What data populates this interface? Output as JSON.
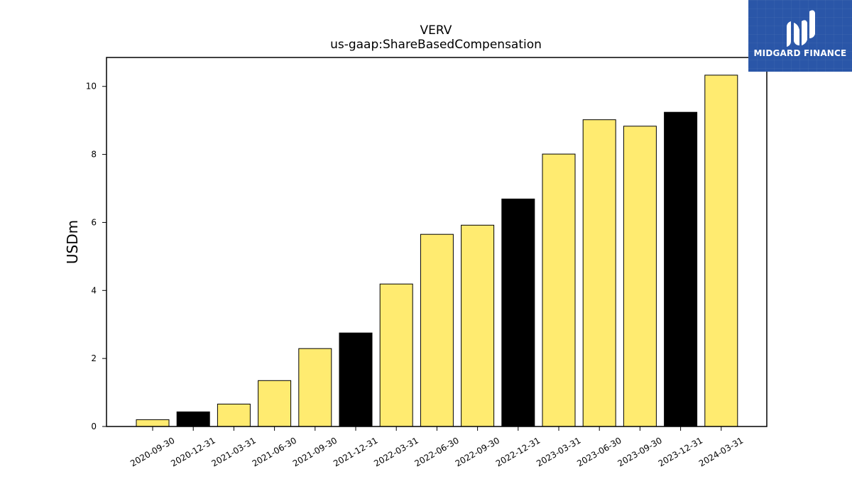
{
  "logo": {
    "text": "MIDGARD FINANCE",
    "icon": "midgard-logo-icon",
    "background_color": "#2a56a8"
  },
  "chart_data": {
    "type": "bar",
    "title": "VERV",
    "subtitle": "us-gaap:ShareBasedCompensation",
    "xlabel": "",
    "ylabel": "USDm",
    "ylim": [
      0,
      10.85
    ],
    "yticks": [
      0,
      2,
      4,
      6,
      8,
      10
    ],
    "grid": false,
    "categories": [
      "2020-09-30",
      "2020-12-31",
      "2021-03-31",
      "2021-06-30",
      "2021-09-30",
      "2021-12-31",
      "2022-03-31",
      "2022-06-30",
      "2022-09-30",
      "2022-12-31",
      "2023-03-31",
      "2023-06-30",
      "2023-09-30",
      "2023-12-31",
      "2024-03-31"
    ],
    "values": [
      0.2,
      0.43,
      0.66,
      1.35,
      2.29,
      2.75,
      4.19,
      5.65,
      5.92,
      6.69,
      8.01,
      9.02,
      8.83,
      9.24,
      10.33
    ],
    "bar_colors": [
      "#ffeb70",
      "#000000",
      "#ffeb70",
      "#ffeb70",
      "#ffeb70",
      "#000000",
      "#ffeb70",
      "#ffeb70",
      "#ffeb70",
      "#000000",
      "#ffeb70",
      "#ffeb70",
      "#ffeb70",
      "#000000",
      "#ffeb70"
    ],
    "bar_edge_color": "#000000"
  }
}
